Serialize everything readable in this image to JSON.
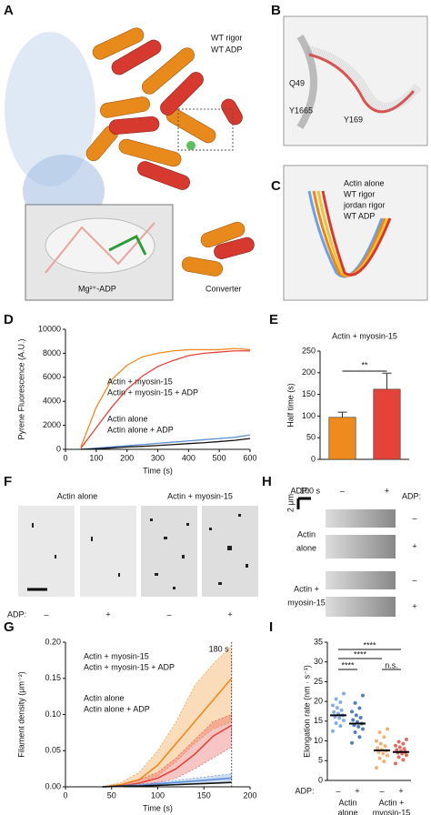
{
  "panels": {
    "A": {
      "label": "A",
      "legend": [
        {
          "name": "WT rigor",
          "color": "#e8891c"
        },
        {
          "name": "WT ADP",
          "color": "#d63a2f"
        }
      ],
      "inset_label": "Mg²⁺-ADP",
      "converter": "Converter"
    },
    "B": {
      "label": "B",
      "residues": [
        "Q49",
        "Y1665",
        "Y169"
      ]
    },
    "C": {
      "label": "C",
      "legend": [
        {
          "name": "Actin alone",
          "color": "#6f9fe0"
        },
        {
          "name": "WT rigor",
          "color": "#e8891c"
        },
        {
          "name": "jordan rigor",
          "color": "#f2c230"
        },
        {
          "name": "WT ADP",
          "color": "#d63a2f"
        }
      ]
    },
    "D": {
      "label": "D"
    },
    "E": {
      "label": "E"
    },
    "F": {
      "label": "F",
      "groups": [
        "Actin alone",
        "Actin + myosin-15"
      ],
      "adp_label": "ADP:",
      "adp": [
        "–",
        "+",
        "–",
        "+"
      ]
    },
    "G": {
      "label": "G"
    },
    "H": {
      "label": "H",
      "time_scale": "100 s",
      "length_scale": "2 μm",
      "adp_label": "ADP:",
      "groups": [
        [
          "Actin",
          "alone"
        ],
        [
          "Actin +",
          "myosin-15"
        ]
      ],
      "adp": [
        "–",
        "+",
        "–",
        "+"
      ]
    },
    "I": {
      "label": "I"
    }
  },
  "chart_data": [
    {
      "type": "line",
      "xlabel": "Time (s)",
      "ylabel": "Pyrene Fluorescence (A.U.)",
      "x": [
        50,
        100,
        150,
        200,
        250,
        300,
        350,
        400,
        450,
        500,
        550,
        600
      ],
      "xlim": [
        0,
        600
      ],
      "xticks": [
        0,
        100,
        200,
        300,
        400,
        500,
        600
      ],
      "ylim": [
        0,
        10000
      ],
      "yticks": [
        0,
        2000,
        4000,
        6000,
        8000,
        10000
      ],
      "series": [
        {
          "name": "Actin + myosin-15",
          "color": "#ee8a1e",
          "values": [
            200,
            3500,
            5800,
            7000,
            7700,
            8000,
            8200,
            8300,
            8300,
            8300,
            8400,
            8300
          ]
        },
        {
          "name": "Actin + myosin-15 + ADP",
          "color": "#e5433a",
          "values": [
            100,
            1800,
            3500,
            5000,
            6100,
            6900,
            7400,
            7800,
            8000,
            8100,
            8200,
            8200
          ]
        },
        {
          "name": "Actin alone",
          "color": "#5b8fd6",
          "values": [
            0,
            100,
            200,
            300,
            400,
            500,
            600,
            700,
            800,
            900,
            1000,
            1200
          ]
        },
        {
          "name": "Actin alone + ADP",
          "color": "#111111",
          "values": [
            0,
            50,
            120,
            200,
            250,
            320,
            400,
            480,
            550,
            650,
            750,
            900
          ]
        }
      ]
    },
    {
      "type": "bar",
      "title": "Actin + myosin-15",
      "ylabel": "Half time (s)",
      "xlabel": "ADP:",
      "categories": [
        "–",
        "+"
      ],
      "values": [
        97,
        162
      ],
      "errors": [
        12,
        37
      ],
      "colors": [
        "#ee8a1e",
        "#e5433a"
      ],
      "ylim": [
        0,
        250
      ],
      "yticks": [
        0,
        50,
        100,
        150,
        200,
        250
      ],
      "significance": "**"
    },
    {
      "type": "line-band",
      "xlabel": "Time (s)",
      "ylabel": "Filament density (μm⁻²)",
      "x": [
        40,
        60,
        80,
        100,
        120,
        140,
        160,
        180
      ],
      "xlim": [
        0,
        200
      ],
      "xticks": [
        0,
        50,
        100,
        150,
        200
      ],
      "ylim": [
        0,
        0.2
      ],
      "yticks": [
        {
          "value": 0,
          "label": "0.00"
        },
        0.05,
        {
          "value": 0.1,
          "label": "0.10"
        },
        0.15,
        {
          "value": 0.2,
          "label": "0.20"
        }
      ],
      "marker": {
        "x": 180,
        "label": "180 s"
      },
      "series": [
        {
          "name": "Actin + myosin-15",
          "color": "#ee8a1e",
          "values": [
            0,
            0.003,
            0.01,
            0.03,
            0.06,
            0.09,
            0.12,
            0.15
          ],
          "lower": [
            0,
            0.001,
            0.005,
            0.015,
            0.035,
            0.06,
            0.08,
            0.09
          ],
          "upper": [
            0,
            0.006,
            0.02,
            0.05,
            0.09,
            0.14,
            0.17,
            0.195
          ]
        },
        {
          "name": "Actin + myosin-15 + ADP",
          "color": "#e5433a",
          "values": [
            0,
            0.001,
            0.005,
            0.012,
            0.025,
            0.045,
            0.07,
            0.085
          ],
          "lower": [
            0,
            0,
            0.002,
            0.006,
            0.012,
            0.025,
            0.04,
            0.055
          ],
          "upper": [
            0,
            0.002,
            0.01,
            0.02,
            0.04,
            0.065,
            0.09,
            0.1
          ]
        },
        {
          "name": "Actin alone",
          "color": "#5b8fd6",
          "values": [
            0,
            0.001,
            0.002,
            0.004,
            0.006,
            0.008,
            0.01,
            0.012
          ],
          "lower": [
            0,
            0,
            0.001,
            0.002,
            0.003,
            0.004,
            0.005,
            0.006
          ],
          "upper": [
            0,
            0.002,
            0.004,
            0.006,
            0.009,
            0.012,
            0.015,
            0.018
          ]
        },
        {
          "name": "Actin alone + ADP",
          "color": "#111111",
          "values": [
            0,
            0.001,
            0.001,
            0.002,
            0.003,
            0.004,
            0.005,
            0.006
          ]
        }
      ]
    },
    {
      "type": "dot",
      "ylabel": "Elongation rate (nm · s⁻¹)",
      "xlabel": "ADP:",
      "categories": [
        "–",
        "+",
        "–",
        "+"
      ],
      "groups": [
        [
          "Actin",
          "alone"
        ],
        [
          "Actin +",
          "myosin-15"
        ]
      ],
      "values": [
        16.5,
        14.4,
        7.6,
        7.2
      ],
      "colors": [
        "#6f9fe0",
        "#3566b8",
        "#f0a35a",
        "#d9524a"
      ],
      "points": [
        [
          12.5,
          13.8,
          14.5,
          15.2,
          15.8,
          16.1,
          16.5,
          16.9,
          17.3,
          17.8,
          18.4,
          19.0,
          19.8,
          20.6,
          22.0
        ],
        [
          9.5,
          11.0,
          12.2,
          13.0,
          13.6,
          14.0,
          14.4,
          14.8,
          15.3,
          15.9,
          16.5,
          17.4,
          18.3,
          19.6,
          21.5
        ],
        [
          3.2,
          4.8,
          5.6,
          6.3,
          6.8,
          7.2,
          7.5,
          7.8,
          8.2,
          8.7,
          9.3,
          10.0,
          11.0,
          12.2,
          13.0
        ],
        [
          4.3,
          5.2,
          5.9,
          6.4,
          6.8,
          7.0,
          7.2,
          7.4,
          7.7,
          8.0,
          8.4,
          8.8,
          9.3,
          9.8,
          10.4
        ]
      ],
      "ylim": [
        0,
        35
      ],
      "yticks": [
        0,
        5,
        10,
        15,
        20,
        25,
        30,
        35
      ],
      "significance": [
        "****",
        "****",
        "****",
        "n.s."
      ]
    }
  ]
}
